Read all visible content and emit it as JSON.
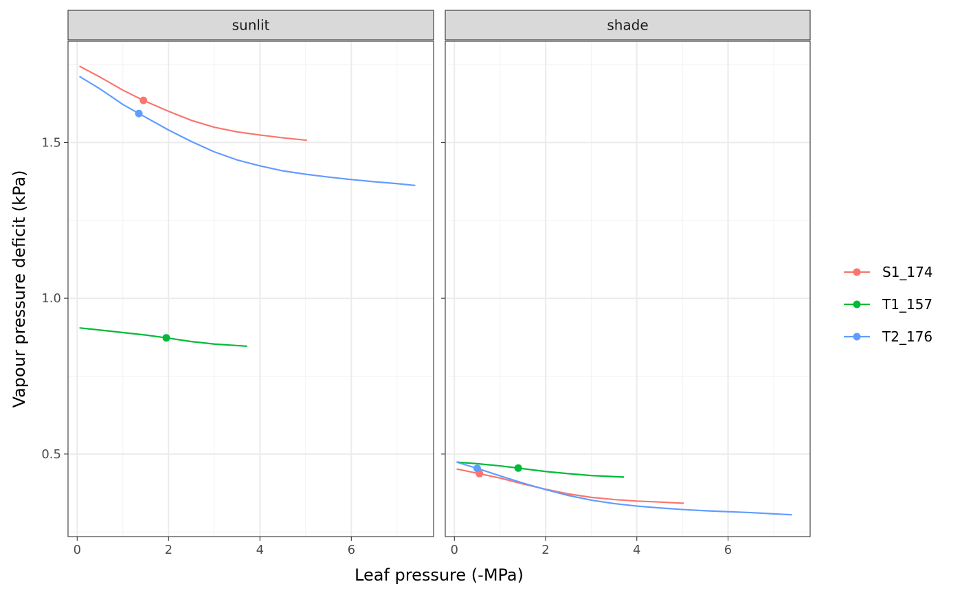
{
  "chart_data": {
    "type": "line",
    "xlabel": "Leaf pressure (-MPa)",
    "ylabel": "Vapour pressure deficit (kPa)",
    "xlim": [
      -0.2,
      7.8
    ],
    "ylim": [
      0.235,
      1.825
    ],
    "x_ticks": [
      0,
      2,
      4,
      6
    ],
    "y_ticks": [
      0.5,
      1.0,
      1.5
    ],
    "x_tick_labels": [
      "0",
      "2",
      "4",
      "6"
    ],
    "y_tick_labels": [
      "0.5",
      "1.0",
      "1.5"
    ],
    "grid": true,
    "legend_position": "right",
    "legend": [
      {
        "name": "S1_174",
        "color": "#F8766D"
      },
      {
        "name": "T1_157",
        "color": "#00BA38"
      },
      {
        "name": "T2_176",
        "color": "#619CFF"
      }
    ],
    "panels": [
      {
        "title": "sunlit",
        "series": [
          {
            "name": "S1_174",
            "color": "#F8766D",
            "x": [
              0.05,
              0.5,
              1.0,
              1.45,
              2.0,
              2.5,
              3.0,
              3.5,
              4.0,
              4.5,
              5.03
            ],
            "y": [
              1.745,
              1.71,
              1.668,
              1.635,
              1.6,
              1.571,
              1.549,
              1.534,
              1.524,
              1.515,
              1.507
            ],
            "point": {
              "x": 1.45,
              "y": 1.635
            }
          },
          {
            "name": "T1_157",
            "color": "#00BA38",
            "x": [
              0.05,
              0.5,
              1.0,
              1.5,
              1.95,
              2.5,
              3.0,
              3.72
            ],
            "y": [
              0.905,
              0.898,
              0.89,
              0.882,
              0.873,
              0.861,
              0.853,
              0.846
            ],
            "point": {
              "x": 1.95,
              "y": 0.873
            }
          },
          {
            "name": "T2_176",
            "color": "#619CFF",
            "x": [
              0.05,
              0.5,
              1.0,
              1.35,
              2.0,
              2.5,
              3.0,
              3.5,
              4.0,
              4.5,
              5.0,
              5.5,
              6.0,
              6.5,
              7.0,
              7.4
            ],
            "y": [
              1.712,
              1.672,
              1.622,
              1.593,
              1.54,
              1.503,
              1.47,
              1.444,
              1.425,
              1.409,
              1.398,
              1.389,
              1.381,
              1.374,
              1.368,
              1.362
            ],
            "point": {
              "x": 1.35,
              "y": 1.593
            }
          }
        ]
      },
      {
        "title": "shade",
        "series": [
          {
            "name": "S1_174",
            "color": "#F8766D",
            "x": [
              0.05,
              0.55,
              1.0,
              1.5,
              2.0,
              2.5,
              3.0,
              3.5,
              4.0,
              4.5,
              5.03
            ],
            "y": [
              0.452,
              0.437,
              0.423,
              0.404,
              0.387,
              0.372,
              0.361,
              0.354,
              0.349,
              0.346,
              0.342
            ],
            "point": {
              "x": 0.55,
              "y": 0.437
            }
          },
          {
            "name": "T1_157",
            "color": "#00BA38",
            "x": [
              0.05,
              0.5,
              1.0,
              1.4,
              2.0,
              2.5,
              3.0,
              3.72
            ],
            "y": [
              0.474,
              0.469,
              0.462,
              0.455,
              0.444,
              0.437,
              0.431,
              0.426
            ],
            "point": {
              "x": 1.4,
              "y": 0.455
            }
          },
          {
            "name": "T2_176",
            "color": "#619CFF",
            "x": [
              0.05,
              0.5,
              1.0,
              1.5,
              2.0,
              2.5,
              3.0,
              3.5,
              4.0,
              4.5,
              5.0,
              5.5,
              6.0,
              6.5,
              7.0,
              7.4
            ],
            "y": [
              0.474,
              0.454,
              0.43,
              0.407,
              0.386,
              0.367,
              0.352,
              0.341,
              0.333,
              0.327,
              0.322,
              0.318,
              0.315,
              0.312,
              0.308,
              0.305
            ],
            "point": {
              "x": 0.5,
              "y": 0.454
            }
          }
        ]
      }
    ]
  }
}
